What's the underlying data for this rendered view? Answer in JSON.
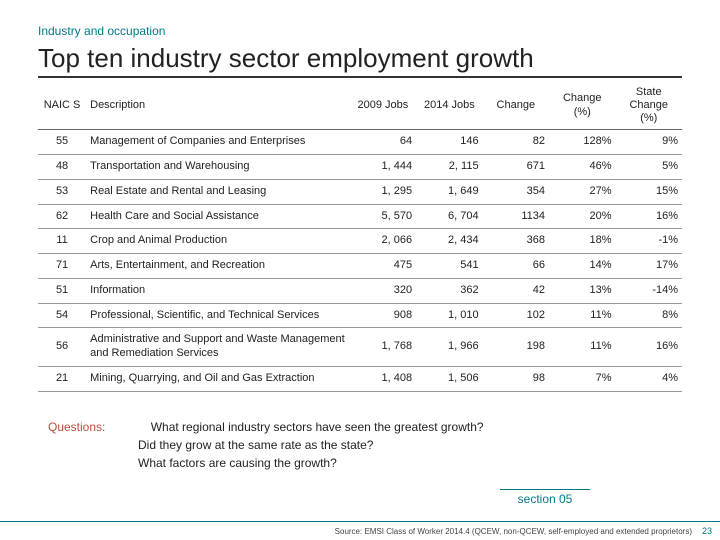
{
  "eyebrow": "Industry and occupation",
  "title": "Top ten industry sector employment growth",
  "columns": [
    "NAIC S",
    "Description",
    "2009 Jobs",
    "2014 Jobs",
    "Change",
    "Change (%)",
    "State Change (%)"
  ],
  "rows": [
    [
      "55",
      "Management of Companies and Enterprises",
      "64",
      "146",
      "82",
      "128%",
      "9%"
    ],
    [
      "48",
      "Transportation and Warehousing",
      "1, 444",
      "2, 115",
      "671",
      "46%",
      "5%"
    ],
    [
      "53",
      "Real Estate and Rental and Leasing",
      "1, 295",
      "1, 649",
      "354",
      "27%",
      "15%"
    ],
    [
      "62",
      "Health Care and Social Assistance",
      "5, 570",
      "6, 704",
      "1134",
      "20%",
      "16%"
    ],
    [
      "11",
      "Crop and Animal Production",
      "2, 066",
      "2, 434",
      "368",
      "18%",
      "-1%"
    ],
    [
      "71",
      "Arts, Entertainment, and Recreation",
      "475",
      "541",
      "66",
      "14%",
      "17%"
    ],
    [
      "51",
      "Information",
      "320",
      "362",
      "42",
      "13%",
      "-14%"
    ],
    [
      "54",
      "Professional, Scientific, and Technical Services",
      "908",
      "1, 010",
      "102",
      "11%",
      "8%"
    ],
    [
      "56",
      "Administrative and Support and Waste Management and Remediation Services",
      "1, 768",
      "1, 966",
      "198",
      "11%",
      "16%"
    ],
    [
      "21",
      "Mining, Quarrying, and Oil and Gas Extraction",
      "1, 408",
      "1, 506",
      "98",
      "7%",
      "4%"
    ]
  ],
  "questions_label": "Questions:",
  "question1": "What regional industry sectors have seen the greatest growth?",
  "question2": "Did they grow at the same rate as the state?",
  "question3": "What factors are causing the growth?",
  "section_tag": "section 05",
  "source": "Source: EMSI Class of Worker 2014.4 (QCEW, non-QCEW, self-employed and extended proprietors)",
  "page_number": "23"
}
